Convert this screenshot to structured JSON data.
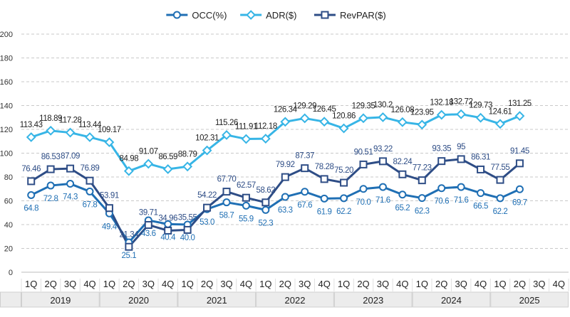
{
  "chart_data": {
    "type": "line",
    "title": "",
    "quarters": [
      "1Q",
      "2Q",
      "3Q",
      "4Q",
      "1Q",
      "2Q",
      "3Q",
      "4Q",
      "1Q",
      "2Q",
      "3Q",
      "4Q",
      "1Q",
      "2Q",
      "3Q",
      "4Q",
      "1Q",
      "2Q",
      "3Q",
      "4Q",
      "1Q",
      "2Q",
      "3Q",
      "4Q",
      "1Q",
      "2Q",
      "3Q",
      "4Q"
    ],
    "years": [
      "2019",
      "2020",
      "2021",
      "2022",
      "2023",
      "2024",
      "2025"
    ],
    "ylim": [
      0,
      200
    ],
    "yticks": [
      "0",
      "20",
      "40",
      "60",
      "80",
      "100",
      "120",
      "140",
      "160",
      "180",
      "200"
    ],
    "grid": true,
    "legend_position": "top-center",
    "series": [
      {
        "name": "OCC(%)",
        "color": "#1f6fb4",
        "marker": "circle",
        "values": [
          64.8,
          72.8,
          74.3,
          67.8,
          49.4,
          25.1,
          43.6,
          40.4,
          40.0,
          53.0,
          58.7,
          55.9,
          52.3,
          63.3,
          67.6,
          61.9,
          62.2,
          70.0,
          71.6,
          65.2,
          62.3,
          70.6,
          71.6,
          66.5,
          62.2,
          69.7,
          null,
          null
        ],
        "labels": [
          "64.8",
          "72.8",
          "74.3",
          "67.8",
          "49.4",
          "25.1",
          "43.6",
          "40.4",
          "40.0",
          "53.0",
          "58.7",
          "55.9",
          "52.3",
          "63.3",
          "67.6",
          "61.9",
          "62.2",
          "70.0",
          "71.6",
          "65.2",
          "62.3",
          "70.6",
          "71.6",
          "66.5",
          "62.2",
          "69.7",
          "",
          ""
        ]
      },
      {
        "name": "ADR($)",
        "color": "#37b5e6",
        "marker": "diamond",
        "values": [
          113.43,
          118.89,
          117.28,
          113.44,
          109.17,
          84.98,
          91.07,
          86.59,
          88.79,
          102.31,
          115.26,
          111.91,
          112.18,
          126.34,
          129.29,
          126.45,
          120.86,
          129.35,
          130.2,
          126.08,
          123.95,
          132.18,
          132.72,
          129.73,
          124.61,
          131.25,
          null,
          null
        ],
        "labels": [
          "113.43",
          "118.89",
          "117.28",
          "113.44",
          "109.17",
          "84.98",
          "91.07",
          "86.59",
          "88.79",
          "102.31",
          "115.26",
          "111.91",
          "112.18",
          "126.34",
          "129.29",
          "126.45",
          "120.86",
          "129.35",
          "130.2",
          "126.08",
          "123.95",
          "132.18",
          "132.72",
          "129.73",
          "124.61",
          "131.25",
          "",
          ""
        ]
      },
      {
        "name": "RevPAR($)",
        "color": "#2e4d86",
        "marker": "square",
        "values": [
          76.46,
          86.53,
          87.09,
          76.89,
          53.91,
          21.34,
          39.71,
          34.96,
          35.55,
          54.22,
          67.7,
          62.57,
          58.62,
          79.92,
          87.37,
          78.28,
          75.2,
          90.51,
          93.22,
          82.24,
          77.23,
          93.35,
          95,
          86.31,
          77.55,
          91.45,
          null,
          null
        ],
        "labels": [
          "76.46",
          "86.53",
          "87.09",
          "76.89",
          "53.91",
          "21.34",
          "39.71",
          "34.96",
          "35.55",
          "54.22",
          "67.70",
          "62.57",
          "58.62",
          "79.92",
          "87.37",
          "78.28",
          "75.20",
          "90.51",
          "93.22",
          "82.24",
          "77.23",
          "93.35",
          "95",
          "86.31",
          "77.55",
          "91.45",
          "",
          ""
        ]
      }
    ]
  }
}
